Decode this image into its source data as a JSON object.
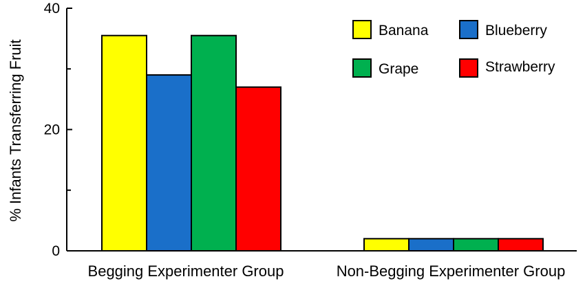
{
  "chart_data": {
    "type": "bar",
    "title": "",
    "xlabel": "",
    "ylabel": "% Infants Transferring Fruit",
    "ylim": [
      0,
      40
    ],
    "yticks": [
      {
        "value": 0,
        "label": "0"
      },
      {
        "value": 20,
        "label": "20"
      },
      {
        "value": 40,
        "label": "40"
      }
    ],
    "minor_yticks": [
      10,
      30
    ],
    "grid": false,
    "legend_position": "top-right",
    "categories": [
      "Begging Experimenter Group",
      "Non-Begging Experimenter Group"
    ],
    "series": [
      {
        "name": "Banana",
        "color": "#ffff00",
        "values": [
          35.5,
          2
        ]
      },
      {
        "name": "Blueberry",
        "color": "#1a6fc9",
        "values": [
          29,
          2
        ]
      },
      {
        "name": "Grape",
        "color": "#00b04f",
        "values": [
          35.5,
          2
        ]
      },
      {
        "name": "Strawberry",
        "color": "#ff0000",
        "values": [
          27,
          2
        ]
      }
    ]
  }
}
